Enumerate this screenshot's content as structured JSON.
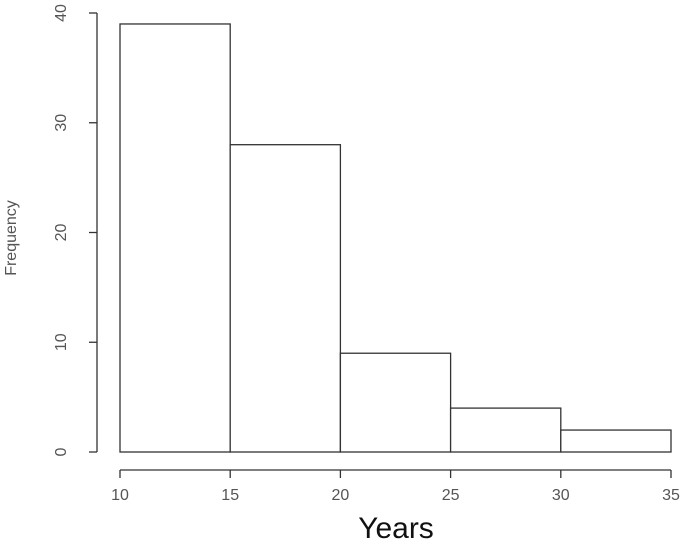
{
  "chart_data": {
    "type": "histogram",
    "x_label": "Years",
    "y_label": "Frequency",
    "bins": [
      10,
      15,
      20,
      25,
      30,
      35
    ],
    "values": [
      39,
      28,
      9,
      4,
      2
    ],
    "xlim": [
      10,
      35
    ],
    "xticks": [
      10,
      15,
      20,
      25,
      30,
      35
    ],
    "ylim": [
      0,
      40
    ],
    "yticks": [
      0,
      10,
      20,
      30,
      40
    ]
  }
}
